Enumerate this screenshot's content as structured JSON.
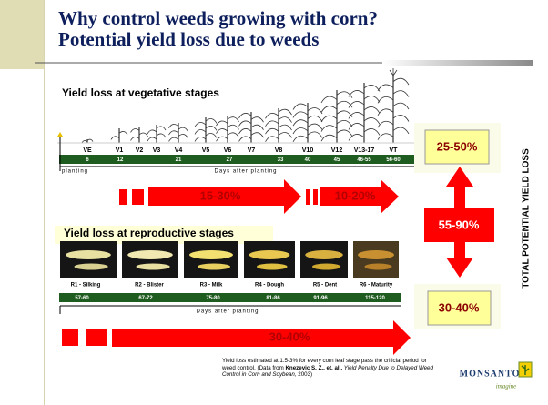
{
  "title": {
    "line1": "Why control weeds growing with corn?",
    "line2": "Potential yield loss due to weeds"
  },
  "vegetative": {
    "heading": "Yield loss at vegetative stages",
    "stages": [
      "VE",
      "V1",
      "V2",
      "V3",
      "V4",
      "V5",
      "V6",
      "V7",
      "V8",
      "V10",
      "V12",
      "V13-17",
      "VT"
    ],
    "days": [
      "6",
      "12",
      "21",
      "27",
      "33",
      "40",
      "45",
      "46-55",
      "56-60"
    ],
    "planting": "planting",
    "axis_label": "Days after planting",
    "arrows": [
      "15-30%",
      "10-20%"
    ]
  },
  "reproductive": {
    "heading": "Yield loss at reproductive stages",
    "stages": [
      "R1 - Silking",
      "R2 - Blister",
      "R3 - Milk",
      "R4 - Dough",
      "R5 - Dent",
      "R6 - Maturity"
    ],
    "days": [
      "57-60",
      "67-72",
      "75-80",
      "81-86",
      "91-96",
      "115-120"
    ],
    "axis_label": "Days after planting",
    "arrow": "30-40%"
  },
  "totals": {
    "vegetative": "25-50%",
    "overall": "55-90%",
    "reproductive": "30-40%",
    "label": "TOTAL POTENTIAL YIELD LOSS"
  },
  "footnote": {
    "text": "Yield loss estimated at 1.5-3% for every corn leaf stage pass the criticial period for weed control. (Data from ",
    "authors": "Knezevic S. Z., et. al.,",
    "paper": "Yield Penalty Due to Delayed Weed Control in Corn and Soybean",
    "year": ", 2003)"
  },
  "logo": {
    "brand": "MONSANTO",
    "tagline": "imagine"
  }
}
